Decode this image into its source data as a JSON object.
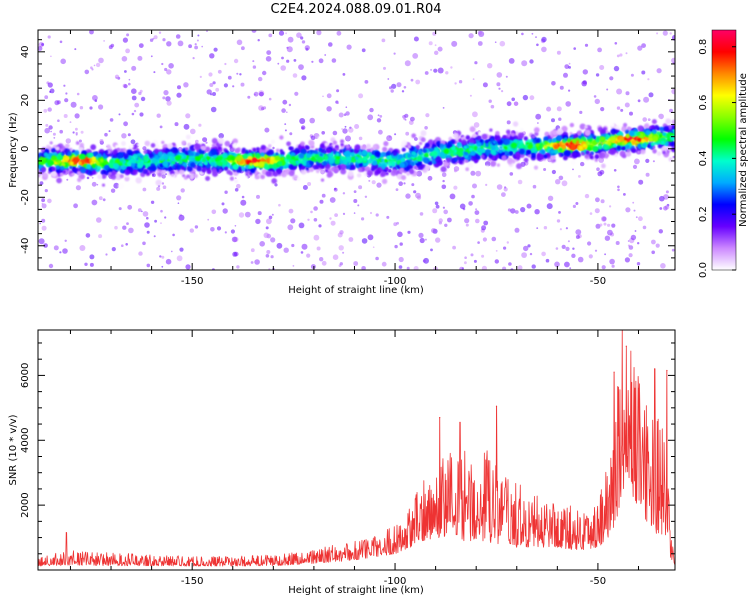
{
  "title": "C2E4.2024.088.09.01.R04",
  "chart_data": [
    {
      "type": "heatmap",
      "xlabel": "Height of straight line (km)",
      "ylabel": "Frequency (Hz)",
      "xlim": [
        -188,
        -31
      ],
      "ylim": [
        -50,
        49
      ],
      "xticks": [
        -150,
        -100,
        -50
      ],
      "yticks": [
        -40,
        -20,
        0,
        20,
        40
      ],
      "ridge": {
        "x": [
          -188,
          -180,
          -170,
          -160,
          -150,
          -140,
          -130,
          -120,
          -110,
          -100,
          -90,
          -80,
          -70,
          -60,
          -50,
          -40,
          -32
        ],
        "frequency_hz": [
          -5,
          -5,
          -6,
          -5,
          -4,
          -5,
          -5,
          -4,
          -4,
          -5,
          -2,
          0,
          1,
          1,
          2,
          4,
          5
        ]
      },
      "hotspots": [
        {
          "x": -57,
          "frequency_hz": 1.5
        },
        {
          "x": -42,
          "frequency_hz": 4
        },
        {
          "x": -178,
          "frequency_hz": -5
        },
        {
          "x": -135,
          "frequency_hz": -5
        }
      ],
      "colorbar": {
        "label": "Normalized spectral amplitude",
        "range": [
          0,
          0.86
        ],
        "ticks": [
          0.0,
          0.2,
          0.4,
          0.6,
          0.8
        ],
        "colors": [
          "#ffffff",
          "#cc88ff",
          "#6600ff",
          "#0000ff",
          "#00aaff",
          "#00ffcc",
          "#00ff00",
          "#88ff00",
          "#ffff00",
          "#ff8800",
          "#ff0000",
          "#ff0066"
        ]
      }
    },
    {
      "type": "line",
      "xlabel": "Height of straight line (km)",
      "ylabel": "SNR (10 * v/v)",
      "xlim": [
        -188,
        -31
      ],
      "ylim": [
        0,
        7400
      ],
      "xticks": [
        -150,
        -100,
        -50
      ],
      "yticks": [
        2000,
        4000,
        6000
      ],
      "color": "#ee3333",
      "envelope": {
        "x": [
          -188,
          -180,
          -170,
          -160,
          -150,
          -140,
          -130,
          -120,
          -110,
          -105,
          -100,
          -96,
          -93,
          -90,
          -86,
          -83,
          -80,
          -77,
          -74,
          -70,
          -65,
          -60,
          -55,
          -50,
          -47,
          -45,
          -43,
          -41,
          -39,
          -37,
          -35,
          -33,
          -32,
          -31
        ],
        "base": [
          120,
          150,
          130,
          130,
          120,
          120,
          130,
          200,
          300,
          400,
          500,
          700,
          900,
          1000,
          1000,
          900,
          900,
          800,
          800,
          700,
          700,
          700,
          600,
          700,
          1000,
          1700,
          2500,
          2200,
          1600,
          1400,
          1000,
          900,
          300,
          150
        ],
        "amplitude": [
          300,
          450,
          400,
          350,
          300,
          300,
          350,
          450,
          600,
          700,
          900,
          1300,
          2000,
          2200,
          3000,
          2900,
          2700,
          3000,
          2200,
          2000,
          1600,
          1500,
          1300,
          1500,
          2800,
          4500,
          5200,
          4400,
          3800,
          3500,
          4000,
          3000,
          700,
          200
        ]
      },
      "peaks": [
        {
          "x": -181,
          "y": 1150
        },
        {
          "x": -89,
          "y": 4700
        },
        {
          "x": -84,
          "y": 4550
        },
        {
          "x": -75,
          "y": 5050
        },
        {
          "x": -46,
          "y": 6100
        },
        {
          "x": -44,
          "y": 7400
        },
        {
          "x": -43,
          "y": 6900
        },
        {
          "x": -40,
          "y": 5600
        },
        {
          "x": -36,
          "y": 6200
        },
        {
          "x": -33,
          "y": 6150
        }
      ]
    }
  ]
}
